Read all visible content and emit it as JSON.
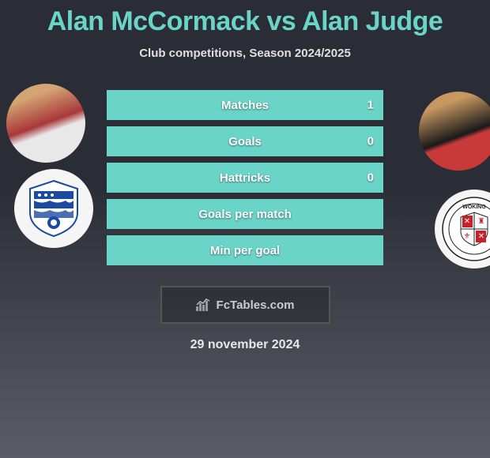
{
  "title_parts": {
    "p1": "Alan McCormack",
    "vs": " vs ",
    "p2": "Alan Judge"
  },
  "subtitle": "Club competitions, Season 2024/2025",
  "date": "29 november 2024",
  "brand": "FcTables.com",
  "accent_color": "#6bd4c8",
  "text_color": "#e0e0e0",
  "bg_gradient": [
    "#2a2d35",
    "#5a5d65"
  ],
  "bar_border_color": "#6bd4c8",
  "bar_fill_color": "#6bd4c8",
  "players": {
    "left": {
      "name": "Alan McCormack",
      "club": "Southend United"
    },
    "right": {
      "name": "Alan Judge",
      "club": "Woking"
    }
  },
  "stats": [
    {
      "label": "Matches",
      "left_val": "",
      "right_val": "1",
      "left_pct": 0,
      "right_pct": 100
    },
    {
      "label": "Goals",
      "left_val": "",
      "right_val": "0",
      "left_pct": 0,
      "right_pct": 100
    },
    {
      "label": "Hattricks",
      "left_val": "",
      "right_val": "0",
      "left_pct": 0,
      "right_pct": 100
    },
    {
      "label": "Goals per match",
      "left_val": "",
      "right_val": "",
      "left_pct": 0,
      "right_pct": 100
    },
    {
      "label": "Min per goal",
      "left_val": "",
      "right_val": "",
      "left_pct": 0,
      "right_pct": 100
    }
  ],
  "crest_left_colors": {
    "bg": "#f5f5f5",
    "primary": "#1b4a9e",
    "secondary": "#ffffff"
  },
  "crest_right_colors": {
    "bg": "#ffffff",
    "primary": "#c8202a",
    "secondary": "#ffffff"
  }
}
